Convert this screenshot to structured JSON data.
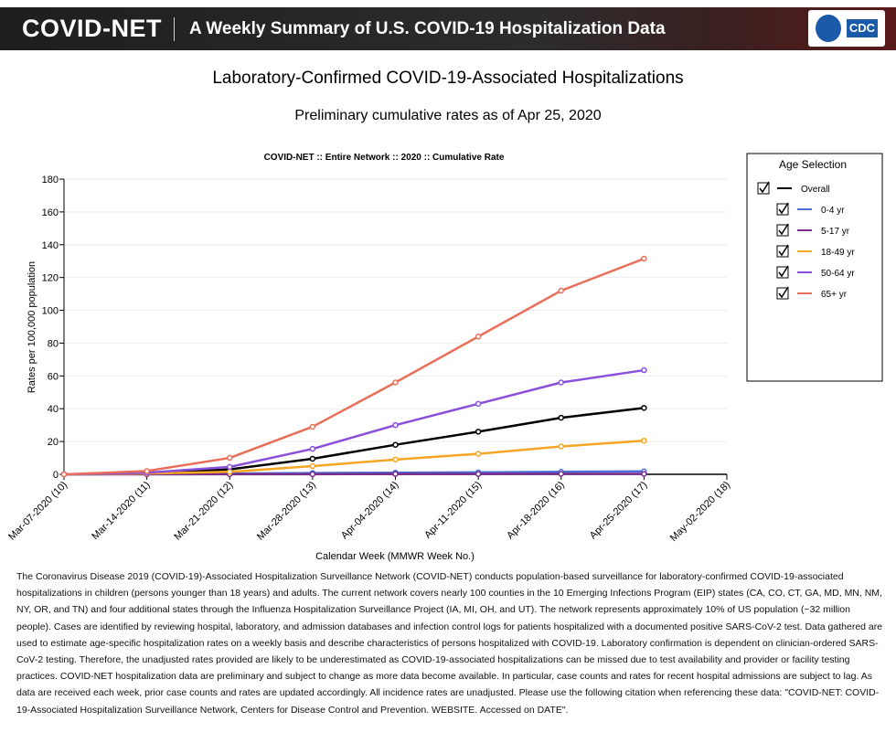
{
  "header": {
    "brand": "COVID-NET",
    "title": "A Weekly Summary of U.S. COVID-19 Hospitalization Data",
    "logo": "CDC"
  },
  "chart_data": {
    "type": "line",
    "title": "Laboratory-Confirmed COVID-19-Associated Hospitalizations",
    "subtitle": "Preliminary cumulative rates as of Apr 25, 2020",
    "plot_title": "COVID-NET :: Entire Network :: 2020 :: Cumulative Rate",
    "xlabel": "Calendar Week (MMWR Week No.)",
    "ylabel": "Rates per 100,000 population",
    "legend_title": "Age Selection",
    "categories": [
      "Mar-07-2020 (10)",
      "Mar-14-2020 (11)",
      "Mar-21-2020 (12)",
      "Mar-28-2020 (13)",
      "Apr-04-2020 (14)",
      "Apr-11-2020 (15)",
      "Apr-18-2020 (16)",
      "Apr-25-2020 (17)",
      "May-02-2020 (18)"
    ],
    "series": [
      {
        "name": "Overall",
        "color": "#000000",
        "values": [
          0,
          0.5,
          3,
          9.5,
          18,
          26,
          34.5,
          40.5,
          null
        ]
      },
      {
        "name": "0-4 yr",
        "color": "#4a6fd8",
        "values": [
          0,
          0.2,
          0.5,
          0.8,
          1,
          1.2,
          1.5,
          1.8,
          null
        ]
      },
      {
        "name": "5-17 yr",
        "color": "#7b2d8b",
        "values": [
          0,
          0,
          0.1,
          0.1,
          0.2,
          0.2,
          0.3,
          0.3,
          null
        ]
      },
      {
        "name": "18-49 yr",
        "color": "#f5a623",
        "values": [
          0,
          0.5,
          1.5,
          5,
          9,
          12.5,
          17,
          20.5,
          null
        ]
      },
      {
        "name": "50-64 yr",
        "color": "#8a4fdb",
        "values": [
          0,
          1,
          4.5,
          15.5,
          30,
          43,
          56,
          63.5,
          null
        ]
      },
      {
        "name": "65+ yr",
        "color": "#e8705a",
        "values": [
          0,
          2,
          10,
          29,
          56,
          84,
          112,
          131.5,
          null
        ]
      }
    ],
    "ylim": [
      0,
      180
    ],
    "yticks": [
      0,
      20,
      40,
      60,
      80,
      100,
      120,
      140,
      160,
      180
    ],
    "grid": true
  },
  "description": "The Coronavirus Disease 2019 (COVID-19)-Associated Hospitalization Surveillance Network (COVID-NET) conducts population-based surveillance for laboratory-confirmed COVID-19-associated hospitalizations in children (persons younger than 18 years) and adults. The current network covers nearly 100 counties in the 10 Emerging Infections Program (EIP) states (CA, CO, CT, GA, MD, MN, NM, NY, OR, and TN) and four additional states through the Influenza Hospitalization Surveillance Project (IA, MI, OH, and UT). The network represents approximately 10% of US population (~32 million people). Cases are identified by reviewing hospital, laboratory, and admission databases and infection control logs for patients hospitalized with a documented positive SARS-CoV-2 test. Data gathered are used to estimate age-specific hospitalization rates on a weekly basis and describe characteristics of persons hospitalized with COVID-19. Laboratory confirmation is dependent on clinician-ordered SARS-CoV-2 testing. Therefore, the unadjusted rates provided are likely to be underestimated as COVID-19-associated hospitalizations can be missed due to test availability and provider or facility testing practices. COVID-NET hospitalization data are preliminary and subject to change as more data become available. In particular, case counts and rates for recent hospital admissions are subject to lag. As data are received each week, prior case counts and rates are updated accordingly. All incidence rates are unadjusted. Please use the following citation when referencing these data: \"COVID-NET: COVID-19-Associated Hospitalization Surveillance Network, Centers for Disease Control and Prevention. WEBSITE. Accessed on DATE\"."
}
